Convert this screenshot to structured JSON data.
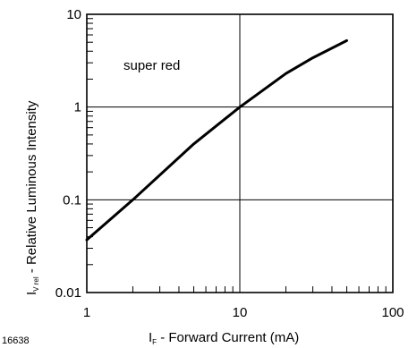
{
  "figure_id": "16638",
  "chart_data": {
    "type": "line",
    "x_scale": "log",
    "y_scale": "log",
    "xlim": [
      1,
      100
    ],
    "ylim": [
      0.01,
      10
    ],
    "x_ticks": [
      1,
      10,
      100
    ],
    "y_ticks": [
      0.01,
      0.1,
      1,
      10
    ],
    "x_tick_labels": [
      "1",
      "10",
      "100"
    ],
    "y_tick_labels": [
      "0.01",
      "0.1",
      "1",
      "10"
    ],
    "xlabel": {
      "symbol": "I",
      "subscript": "F",
      "text": " - Forward Current (mA)"
    },
    "ylabel": {
      "symbol": "I",
      "subscript": "V rel",
      "text": " - Relative Luminous Intensity"
    },
    "grid": "major",
    "annotation": "super red",
    "series": [
      {
        "x": [
          1,
          2,
          5,
          10,
          20,
          30,
          50
        ],
        "y": [
          0.037,
          0.1,
          0.4,
          1.0,
          2.3,
          3.4,
          5.2
        ]
      }
    ]
  }
}
